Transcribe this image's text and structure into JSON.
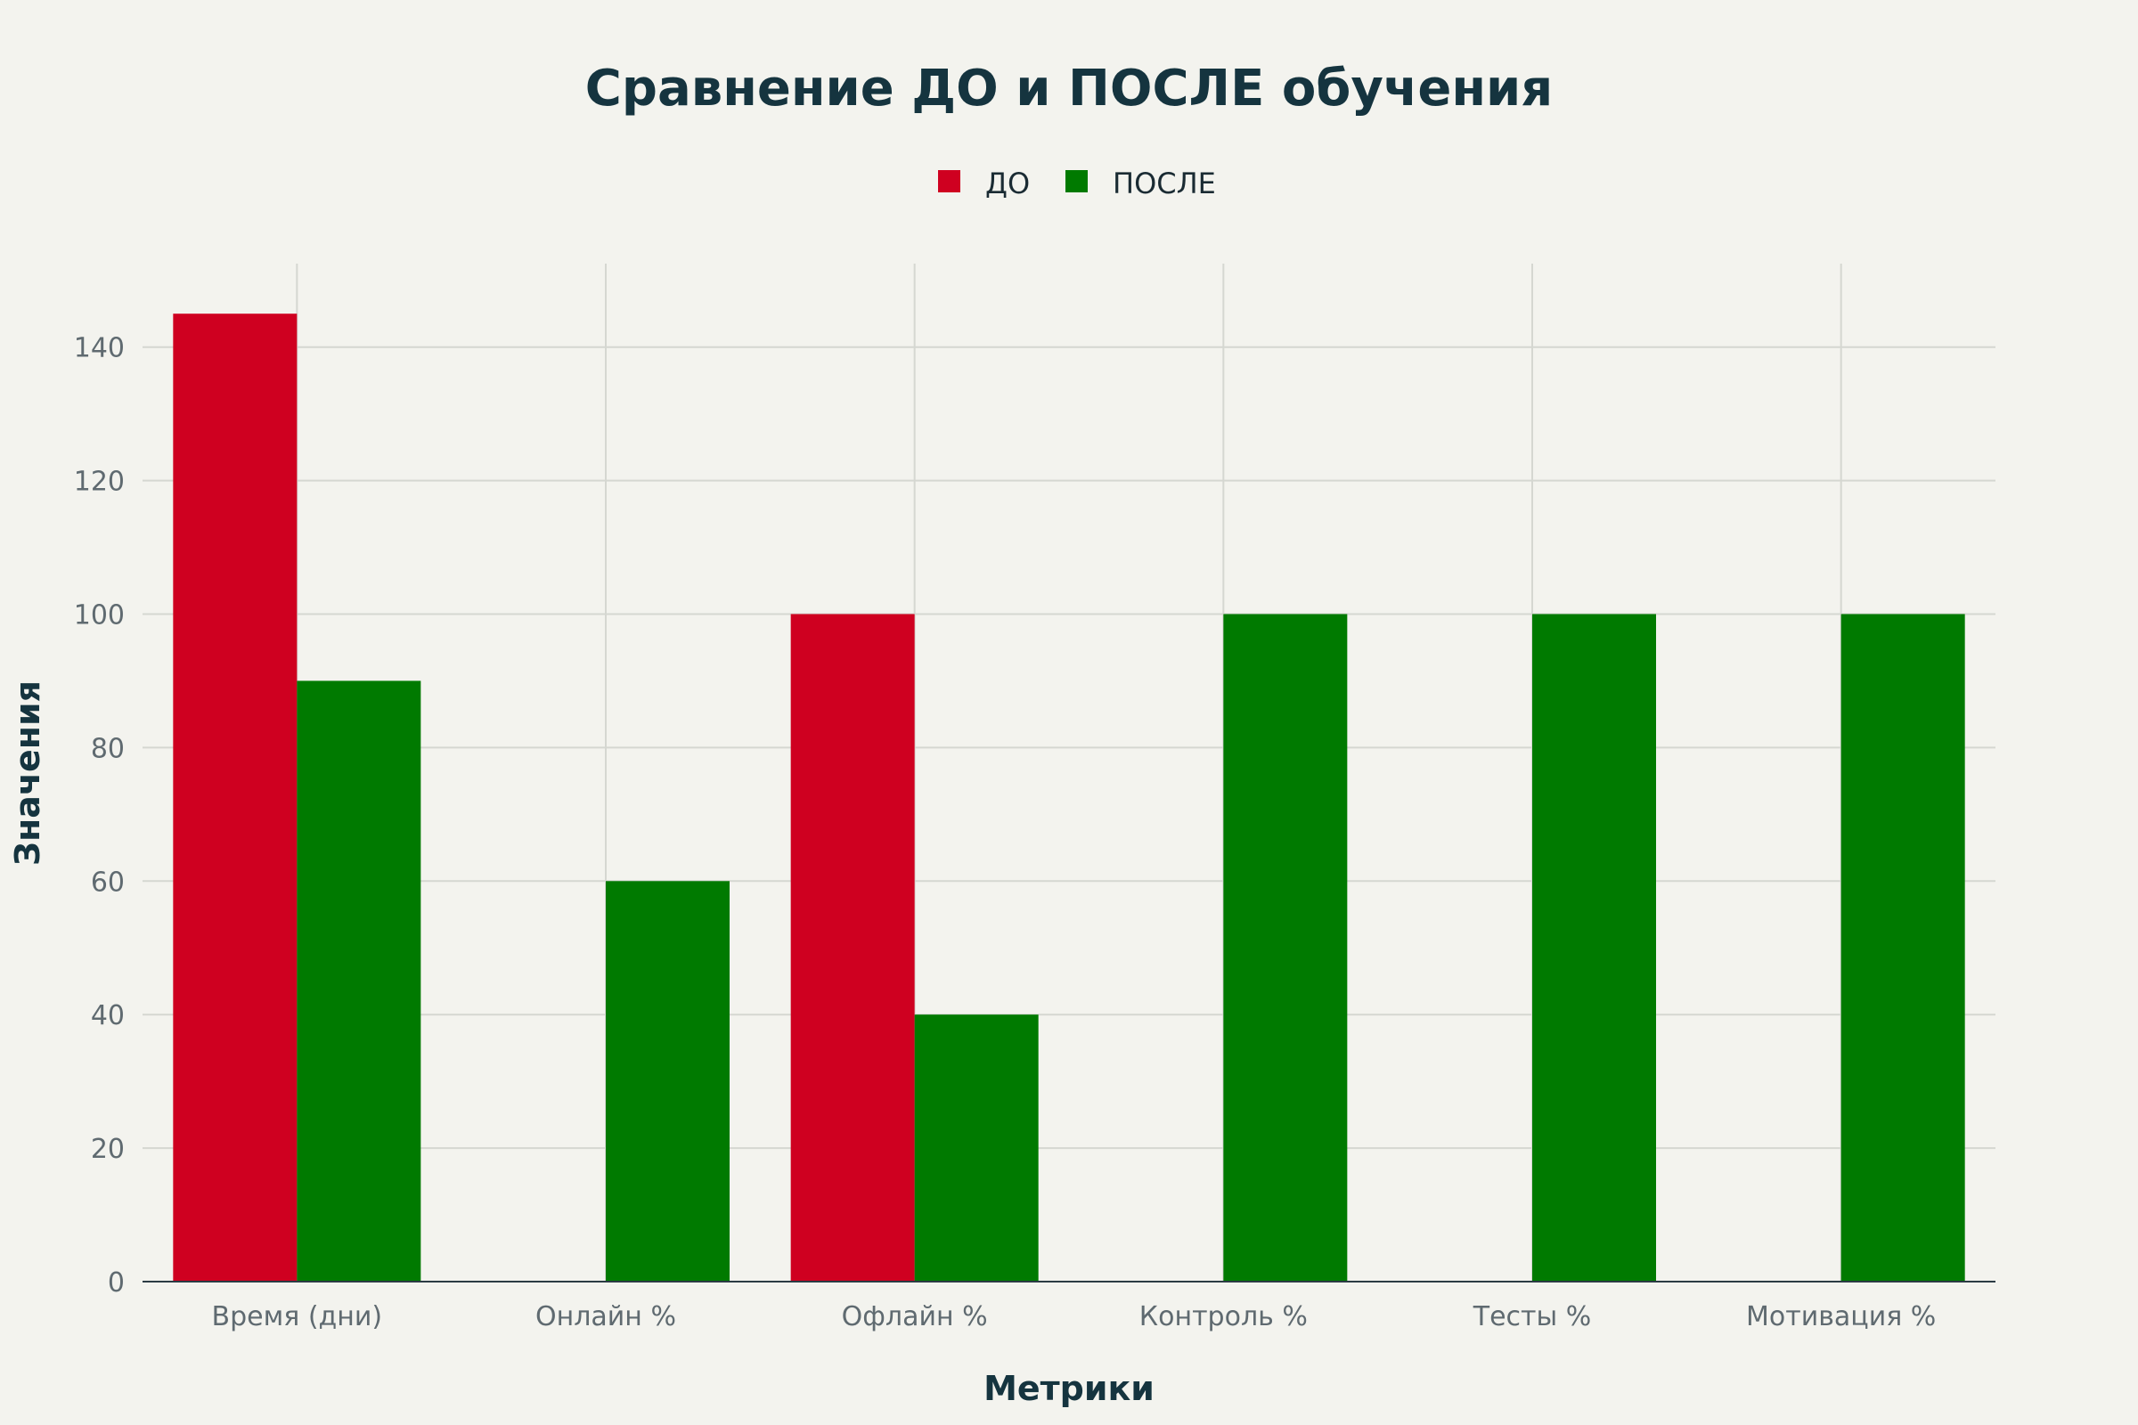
{
  "chart_data": {
    "type": "bar",
    "title": "Сравнение ДО и ПОСЛЕ обучения",
    "xlabel": "Метрики",
    "ylabel": "Значения",
    "categories": [
      "Время (дни)",
      "Онлайн %",
      "Офлайн %",
      "Контроль %",
      "Тесты %",
      "Мотивация %"
    ],
    "series": [
      {
        "name": "ДО",
        "color": "#cf0020",
        "values": [
          145,
          0,
          100,
          0,
          0,
          0
        ]
      },
      {
        "name": "ПОСЛЕ",
        "color": "#007a00",
        "values": [
          90,
          60,
          40,
          100,
          100,
          100
        ]
      }
    ],
    "ylim": [
      0,
      152.5
    ],
    "yticks": [
      0,
      20,
      40,
      60,
      80,
      100,
      120,
      140
    ],
    "grid": true,
    "legend_position": "top-center"
  }
}
